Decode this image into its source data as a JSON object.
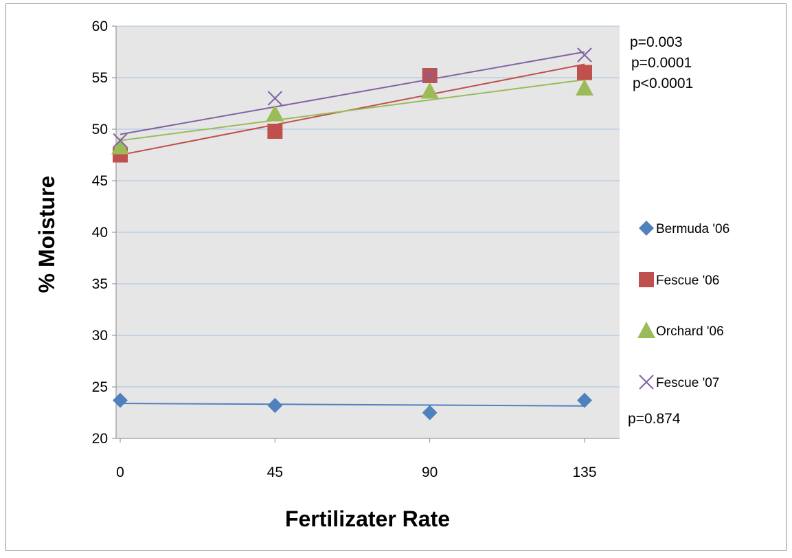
{
  "chart_data": {
    "type": "scatter",
    "title": "",
    "xlabel": "Fertilizater Rate",
    "ylabel": "% Moisture",
    "x_categories": [
      "0",
      "45",
      "90",
      "135"
    ],
    "x": [
      0,
      45,
      90,
      135
    ],
    "ylim": [
      20,
      60
    ],
    "yticks": [
      "20",
      "25",
      "30",
      "35",
      "40",
      "45",
      "50",
      "55",
      "60"
    ],
    "grid": "horizontal",
    "legend_position": "right",
    "plot_background": "#e6e6e6",
    "series": [
      {
        "name": "Bermuda '06",
        "marker": "diamond",
        "color": "#4f81bd",
        "values": [
          23.7,
          23.2,
          22.5,
          23.7
        ],
        "trend": [
          23.4,
          23.15
        ]
      },
      {
        "name": "Fescue '06",
        "marker": "square",
        "color": "#c0504d",
        "values": [
          47.5,
          49.8,
          55.2,
          55.5
        ],
        "trend": [
          47.5,
          56.3
        ]
      },
      {
        "name": "Orchard '06",
        "marker": "triangle",
        "color": "#9bbb59",
        "values": [
          48.3,
          51.5,
          53.7,
          54.0
        ],
        "trend": [
          48.9,
          54.8
        ]
      },
      {
        "name": "Fescue '07",
        "marker": "x",
        "color": "#8064a2",
        "values": [
          48.9,
          53.0,
          55.2,
          57.2
        ],
        "trend": [
          49.5,
          57.5
        ]
      }
    ],
    "annotations": [
      {
        "text": "p=0.003",
        "series": "Fescue '07"
      },
      {
        "text": "p=0.0001",
        "series": "Fescue '06"
      },
      {
        "text": "p<0.0001",
        "series": "Orchard '06"
      },
      {
        "text": "p=0.874",
        "series": "Bermuda '06"
      }
    ]
  }
}
